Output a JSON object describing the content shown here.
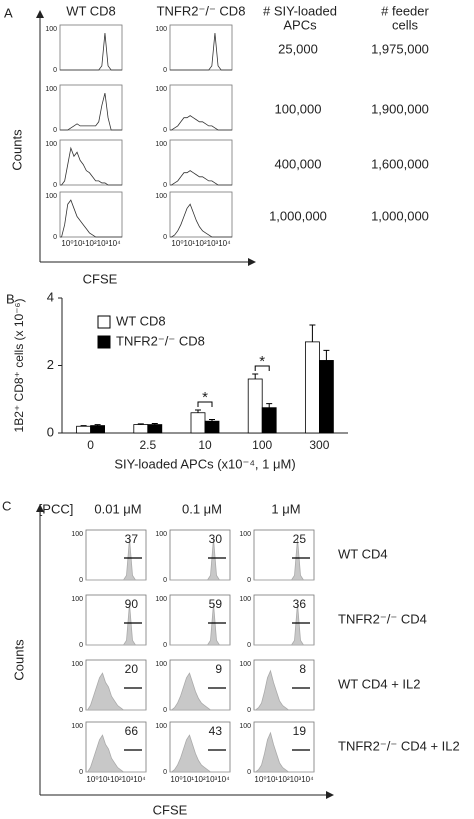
{
  "panel_a": {
    "label": "A",
    "columns": [
      "WT CD8",
      "TNFR2⁻/⁻ CD8"
    ],
    "apc_header": [
      "# SIY-loaded",
      "APCs"
    ],
    "feeder_header": [
      "# feeder",
      "cells"
    ],
    "rows": [
      [
        "25,000",
        "1,975,000"
      ],
      [
        "100,000",
        "1,900,000"
      ],
      [
        "400,000",
        "1,600,000"
      ],
      [
        "1,000,000",
        "1,000,000"
      ]
    ],
    "y_tick_labels": [
      "100",
      "0"
    ],
    "x_tick_label": "10⁰10¹10²10³10⁴",
    "y_label": "Counts",
    "x_label": "CFSE"
  },
  "chart_data": {
    "type": "bar",
    "panel_label": "B",
    "y_label": "1B2⁺ CD8⁺ cells (x 10⁻⁶)",
    "x_label": "SIY-loaded APCs (x10⁻⁴, 1 μM)",
    "categories": [
      "0",
      "2.5",
      "10",
      "100",
      "300"
    ],
    "series": [
      {
        "name": "WT CD8",
        "color": "#ffffff",
        "values": [
          0.2,
          0.25,
          0.6,
          1.6,
          2.7
        ],
        "errors": [
          0.02,
          0.02,
          0.08,
          0.15,
          0.5
        ]
      },
      {
        "name": "TNFR2⁻/⁻ CD8",
        "color": "#000000",
        "values": [
          0.22,
          0.25,
          0.35,
          0.75,
          2.15
        ],
        "errors": [
          0.03,
          0.03,
          0.05,
          0.12,
          0.3
        ]
      }
    ],
    "ylim": [
      0,
      4
    ],
    "yticks": [
      0,
      2,
      4
    ],
    "annotations": [
      "*",
      "*"
    ]
  },
  "panel_c": {
    "label": "C",
    "concentration_header": "[PCC]",
    "concentrations": [
      "0.01 μM",
      "0.1 μM",
      "1 μM"
    ],
    "rows": [
      "WT CD4",
      "TNFR2⁻/⁻ CD4",
      "WT CD4 + IL2",
      "TNFR2⁻/⁻ CD4 + IL2"
    ],
    "percentages": [
      [
        "37",
        "30",
        "25"
      ],
      [
        "90",
        "59",
        "36"
      ],
      [
        "20",
        "9",
        "8"
      ],
      [
        "66",
        "43",
        "19"
      ]
    ],
    "y_tick_labels": [
      "100",
      "0"
    ],
    "x_tick_label": "10⁰10¹10²10³10⁴",
    "y_label": "Counts",
    "x_label": "CFSE"
  }
}
